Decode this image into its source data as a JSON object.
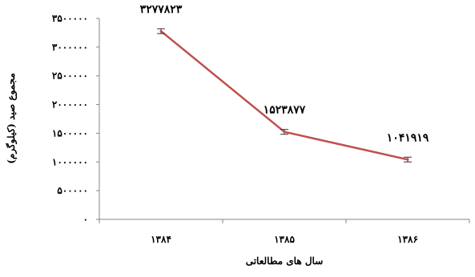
{
  "chart_data": {
    "type": "line",
    "title": "",
    "xlabel": "سال های مطالعاتی",
    "ylabel": "مجموع صید (کیلوگرم)",
    "categories": [
      "۱۳۸۴",
      "۱۳۸۵",
      "۱۳۸۶"
    ],
    "series": [
      {
        "values": [
          3277823,
          1523877,
          1041919
        ],
        "data_labels": [
          "۳۲۷۷۸۲۳",
          "۱۵۲۳۸۷۷",
          "۱۰۴۱۹۱۹"
        ],
        "color": "#c0504d"
      }
    ],
    "ylim": [
      0,
      3500000
    ],
    "yticks": [
      0,
      500000,
      1000000,
      1500000,
      2000000,
      2500000,
      3000000,
      3500000
    ],
    "ytick_labels": [
      "۰",
      "۵۰۰۰۰۰",
      "۱۰۰۰۰۰۰",
      "۱۵۰۰۰۰۰",
      "۲۰۰۰۰۰۰",
      "۲۵۰۰۰۰۰",
      "۳۰۰۰۰۰۰",
      "۳۵۰۰۰۰۰"
    ],
    "grid": false,
    "legend": "none",
    "error_bars": true
  }
}
